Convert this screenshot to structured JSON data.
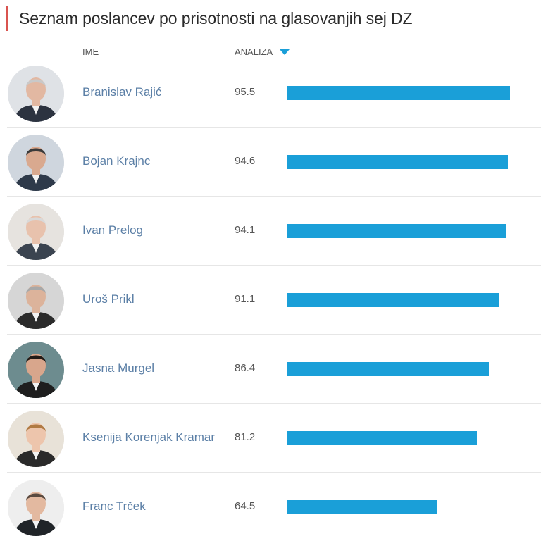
{
  "title": "Seznam poslancev po prisotnosti na glasovanjih sej DZ",
  "columns": {
    "name": "IME",
    "analysis": "ANALIZA"
  },
  "sort": {
    "column": "ANALIZA",
    "direction": "descending"
  },
  "colors": {
    "bar": "#1a9fd8",
    "title_accent": "#d9534f",
    "name_link": "#5b7fa6"
  },
  "bar_scale_max": 100,
  "rows": [
    {
      "name": "Branislav Rajić",
      "value": "95.5",
      "bar_fraction": 0.955,
      "avatar": "portrait-photo"
    },
    {
      "name": "Bojan Krajnc",
      "value": "94.6",
      "bar_fraction": 0.946,
      "avatar": "portrait-photo"
    },
    {
      "name": "Ivan Prelog",
      "value": "94.1",
      "bar_fraction": 0.941,
      "avatar": "portrait-photo"
    },
    {
      "name": "Uroš Prikl",
      "value": "91.1",
      "bar_fraction": 0.911,
      "avatar": "portrait-photo"
    },
    {
      "name": "Jasna Murgel",
      "value": "86.4",
      "bar_fraction": 0.864,
      "avatar": "portrait-photo"
    },
    {
      "name": "Ksenija Korenjak Kramar",
      "value": "81.2",
      "bar_fraction": 0.812,
      "avatar": "portrait-photo"
    },
    {
      "name": "Franc Trček",
      "value": "64.5",
      "bar_fraction": 0.645,
      "avatar": "portrait-photo"
    }
  ]
}
